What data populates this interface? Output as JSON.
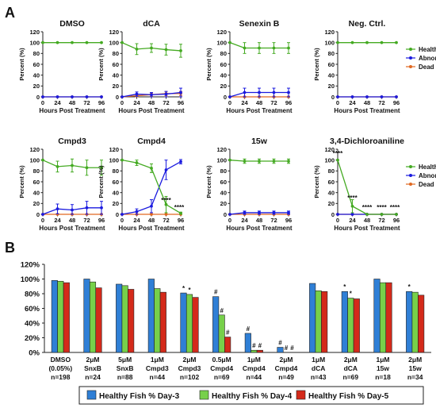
{
  "figure": {
    "panel_a_label": "A",
    "panel_b_label": "B"
  },
  "colors": {
    "healthy": "#44aa22",
    "abnormal": "#1a1adf",
    "dead": "#e06820",
    "bar_day3": "#2f7fd6",
    "bar_day4": "#77d04a",
    "bar_day5": "#d42a1a"
  },
  "chart_data": [
    {
      "type": "line",
      "title": "DMSO",
      "xlabel": "Hours Post Treatment",
      "ylabel": "Percent (%)",
      "x": [
        0,
        24,
        48,
        72,
        96
      ],
      "xticks": [
        "0",
        "24",
        "48",
        "72",
        "96"
      ],
      "yticks": [
        "0",
        "20",
        "40",
        "60",
        "80",
        "100",
        "120"
      ],
      "ylim": [
        0,
        120
      ],
      "series": [
        {
          "name": "Healthy",
          "color": "#44aa22",
          "values": [
            100,
            100,
            100,
            100,
            100
          ],
          "err": [
            0,
            0,
            0,
            0,
            0
          ]
        },
        {
          "name": "Abnormal",
          "color": "#1a1adf",
          "values": [
            0,
            0,
            0,
            0,
            0
          ],
          "err": [
            0,
            0,
            0,
            0,
            0
          ]
        },
        {
          "name": "Dead",
          "color": "#e06820",
          "values": [
            0,
            0,
            0,
            0,
            0
          ],
          "err": [
            0,
            0,
            0,
            0,
            0
          ]
        }
      ],
      "annotations": []
    },
    {
      "type": "line",
      "title": "dCA",
      "xlabel": "Hours Post Treatment",
      "ylabel": "Percent (%)",
      "x": [
        0,
        24,
        48,
        72,
        96
      ],
      "xticks": [
        "0",
        "24",
        "48",
        "72",
        "96"
      ],
      "yticks": [
        "0",
        "20",
        "40",
        "60",
        "80",
        "100",
        "120"
      ],
      "ylim": [
        0,
        120
      ],
      "series": [
        {
          "name": "Healthy",
          "color": "#44aa22",
          "values": [
            100,
            88,
            90,
            87,
            85
          ],
          "err": [
            0,
            10,
            8,
            10,
            12
          ]
        },
        {
          "name": "Abnormal",
          "color": "#1a1adf",
          "values": [
            0,
            5,
            4,
            5,
            8
          ],
          "err": [
            0,
            4,
            4,
            5,
            8
          ]
        },
        {
          "name": "Dead",
          "color": "#e06820",
          "values": [
            0,
            2,
            4,
            6,
            6
          ],
          "err": [
            0,
            2,
            3,
            4,
            4
          ]
        }
      ],
      "annotations": []
    },
    {
      "type": "line",
      "title": "Senexin B",
      "xlabel": "Hours Post Treatment",
      "ylabel": "Percent (%)",
      "x": [
        0,
        24,
        48,
        72,
        96
      ],
      "xticks": [
        "0",
        "24",
        "48",
        "72",
        "96"
      ],
      "yticks": [
        "0",
        "20",
        "40",
        "60",
        "80",
        "100",
        "120"
      ],
      "ylim": [
        0,
        120
      ],
      "series": [
        {
          "name": "Healthy",
          "color": "#44aa22",
          "values": [
            100,
            90,
            90,
            90,
            90
          ],
          "err": [
            0,
            10,
            10,
            10,
            10
          ]
        },
        {
          "name": "Abnormal",
          "color": "#1a1adf",
          "values": [
            0,
            8,
            8,
            8,
            8
          ],
          "err": [
            0,
            8,
            8,
            8,
            8
          ]
        },
        {
          "name": "Dead",
          "color": "#e06820",
          "values": [
            0,
            0,
            0,
            0,
            0
          ],
          "err": [
            0,
            0,
            0,
            0,
            0
          ]
        }
      ],
      "annotations": []
    },
    {
      "type": "line",
      "title": "Neg. Ctrl.",
      "xlabel": "Hours Post Treatment",
      "ylabel": "Percent (%)",
      "x": [
        0,
        24,
        48,
        72,
        96
      ],
      "xticks": [
        "0",
        "24",
        "48",
        "72",
        "96"
      ],
      "yticks": [
        "0",
        "20",
        "40",
        "60",
        "80",
        "100",
        "120"
      ],
      "ylim": [
        0,
        120
      ],
      "series": [
        {
          "name": "Healthy",
          "color": "#44aa22",
          "values": [
            100,
            100,
            100,
            100,
            100
          ],
          "err": [
            0,
            0,
            0,
            0,
            0
          ]
        },
        {
          "name": "Abnormal",
          "color": "#1a1adf",
          "values": [
            0,
            0,
            0,
            0,
            0
          ],
          "err": [
            0,
            0,
            0,
            0,
            0
          ]
        },
        {
          "name": "Dead",
          "color": "#e06820",
          "values": [
            0,
            0,
            0,
            0,
            0
          ],
          "err": [
            0,
            0,
            0,
            0,
            0
          ]
        }
      ],
      "annotations": []
    },
    {
      "type": "line",
      "title": "Cmpd3",
      "xlabel": "Hours Post Treatment",
      "ylabel": "Percent (%)",
      "x": [
        0,
        24,
        48,
        72,
        96
      ],
      "xticks": [
        "0",
        "24",
        "48",
        "72",
        "96"
      ],
      "yticks": [
        "0",
        "20",
        "40",
        "60",
        "80",
        "100",
        "120"
      ],
      "ylim": [
        0,
        120
      ],
      "series": [
        {
          "name": "Healthy",
          "color": "#44aa22",
          "values": [
            100,
            88,
            90,
            86,
            86
          ],
          "err": [
            0,
            10,
            12,
            14,
            14
          ]
        },
        {
          "name": "Abnormal",
          "color": "#1a1adf",
          "values": [
            0,
            10,
            8,
            12,
            12
          ],
          "err": [
            0,
            9,
            10,
            12,
            12
          ]
        },
        {
          "name": "Dead",
          "color": "#e06820",
          "values": [
            0,
            0,
            0,
            0,
            0
          ],
          "err": [
            0,
            0,
            0,
            0,
            0
          ]
        }
      ],
      "annotations": []
    },
    {
      "type": "line",
      "title": "Cmpd4",
      "xlabel": "Hours Post Treatment",
      "ylabel": "Percent (%)",
      "x": [
        0,
        24,
        48,
        72,
        96
      ],
      "xticks": [
        "0",
        "24",
        "48",
        "72",
        "96"
      ],
      "yticks": [
        "0",
        "20",
        "40",
        "60",
        "80",
        "100",
        "120"
      ],
      "ylim": [
        0,
        120
      ],
      "series": [
        {
          "name": "Healthy",
          "color": "#44aa22",
          "values": [
            100,
            95,
            85,
            18,
            2
          ],
          "err": [
            0,
            5,
            8,
            15,
            2
          ]
        },
        {
          "name": "Abnormal",
          "color": "#1a1adf",
          "values": [
            0,
            5,
            15,
            82,
            97
          ],
          "err": [
            0,
            5,
            12,
            18,
            4
          ]
        },
        {
          "name": "Dead",
          "color": "#e06820",
          "values": [
            0,
            0,
            0,
            0,
            0
          ],
          "err": [
            0,
            0,
            0,
            0,
            0
          ]
        }
      ],
      "annotations": [
        {
          "x": 72,
          "y": 22,
          "text": "****"
        },
        {
          "x": 96,
          "y": 9,
          "text": "****"
        }
      ]
    },
    {
      "type": "line",
      "title": "15w",
      "xlabel": "Hours Post Treatment",
      "ylabel": "Percent (%)",
      "x": [
        0,
        24,
        48,
        72,
        96
      ],
      "xticks": [
        "0",
        "24",
        "48",
        "72",
        "96"
      ],
      "yticks": [
        "0",
        "20",
        "40",
        "60",
        "80",
        "100",
        "120"
      ],
      "ylim": [
        0,
        120
      ],
      "series": [
        {
          "name": "Healthy",
          "color": "#44aa22",
          "values": [
            100,
            98,
            98,
            98,
            98
          ],
          "err": [
            0,
            4,
            4,
            4,
            4
          ]
        },
        {
          "name": "Abnormal",
          "color": "#1a1adf",
          "values": [
            0,
            3,
            3,
            3,
            3
          ],
          "err": [
            0,
            3,
            3,
            3,
            3
          ]
        },
        {
          "name": "Dead",
          "color": "#e06820",
          "values": [
            0,
            0,
            0,
            0,
            0
          ],
          "err": [
            0,
            0,
            0,
            0,
            0
          ]
        }
      ],
      "annotations": []
    },
    {
      "type": "line",
      "title": "3,4-Dichloroaniline",
      "xlabel": "Hours Post Treatment",
      "ylabel": "Percent (%)",
      "x": [
        0,
        24,
        48,
        72,
        96
      ],
      "xticks": [
        "0",
        "24",
        "48",
        "72",
        "96"
      ],
      "yticks": [
        "0",
        "20",
        "40",
        "60",
        "80",
        "100",
        "120"
      ],
      "ylim": [
        0,
        120
      ],
      "series": [
        {
          "name": "Healthy",
          "color": "#44aa22",
          "values": [
            100,
            15,
            0,
            0,
            0
          ],
          "err": [
            0,
            12,
            0,
            0,
            0
          ]
        },
        {
          "name": "Abnormal",
          "color": "#1a1adf",
          "values": [
            0,
            0,
            0,
            0,
            0
          ],
          "err": [
            0,
            0,
            0,
            0,
            0
          ]
        },
        {
          "name": "Dead",
          "color": "#e06820",
          "values": [
            0,
            0,
            0,
            0,
            0
          ],
          "err": [
            0,
            0,
            0,
            0,
            0
          ]
        }
      ],
      "annotations": [
        {
          "x": 0,
          "y": 108,
          "text": "****"
        },
        {
          "x": 24,
          "y": 26,
          "text": "****"
        },
        {
          "x": 48,
          "y": 9,
          "text": "****"
        },
        {
          "x": 72,
          "y": 9,
          "text": "****"
        },
        {
          "x": 96,
          "y": 9,
          "text": "****"
        }
      ]
    },
    {
      "type": "bar",
      "title": "",
      "xlabel": "",
      "ylabel": "",
      "ylim": [
        0,
        120
      ],
      "yticks": [
        "0%",
        "20%",
        "40%",
        "60%",
        "80%",
        "100%",
        "120%"
      ],
      "categories": [
        {
          "lines": [
            "DMSO",
            "(0.05%)",
            "n=198"
          ]
        },
        {
          "lines": [
            "2μM",
            "SnxB",
            "n=24"
          ]
        },
        {
          "lines": [
            "5μM",
            "SnxB",
            "n=88"
          ]
        },
        {
          "lines": [
            "1μM",
            "Cmpd3",
            "n=44"
          ]
        },
        {
          "lines": [
            "2μM",
            "Cmpd3",
            "n=102"
          ]
        },
        {
          "lines": [
            "0.5μM",
            "Cmpd4",
            "n=69"
          ]
        },
        {
          "lines": [
            "1μM",
            "Cmpd4",
            "n=44"
          ]
        },
        {
          "lines": [
            "2μM",
            "Cmpd4",
            "n=49"
          ]
        },
        {
          "lines": [
            "1μM",
            "dCA",
            "n=43"
          ]
        },
        {
          "lines": [
            "2μM",
            "dCA",
            "n=69"
          ]
        },
        {
          "lines": [
            "1μM",
            "15w",
            "n=18"
          ]
        },
        {
          "lines": [
            "2μM",
            "15w",
            "n=34"
          ]
        }
      ],
      "series": [
        {
          "name": "Healthy Fish % Day-3",
          "color": "#2f7fd6",
          "values": [
            98,
            100,
            93,
            100,
            81,
            76,
            26,
            7,
            94,
            83,
            100,
            83
          ]
        },
        {
          "name": "Healthy Fish % Day-4",
          "color": "#77d04a",
          "values": [
            97,
            96,
            91,
            87,
            79,
            51,
            3,
            0,
            84,
            74,
            95,
            82
          ]
        },
        {
          "name": "Healthy Fish % Day-5",
          "color": "#d42a1a",
          "values": [
            95,
            88,
            86,
            82,
            75,
            21,
            3,
            0,
            83,
            73,
            95,
            78
          ]
        }
      ],
      "annotations": [
        {
          "category": 4,
          "series": 0,
          "text": "*"
        },
        {
          "category": 4,
          "series": 1,
          "text": "*"
        },
        {
          "category": 5,
          "series": 0,
          "text": "#"
        },
        {
          "category": 5,
          "series": 1,
          "text": "#"
        },
        {
          "category": 5,
          "series": 2,
          "text": "#"
        },
        {
          "category": 6,
          "series": 0,
          "text": "#"
        },
        {
          "category": 6,
          "series": 1,
          "text": "#"
        },
        {
          "category": 6,
          "series": 2,
          "text": "#"
        },
        {
          "category": 7,
          "series": 0,
          "text": "#"
        },
        {
          "category": 7,
          "series": 1,
          "text": "#"
        },
        {
          "category": 7,
          "series": 2,
          "text": "#"
        },
        {
          "category": 9,
          "series": 0,
          "text": "*"
        },
        {
          "category": 9,
          "series": 1,
          "text": "*"
        },
        {
          "category": 11,
          "series": 0,
          "text": "*"
        }
      ]
    }
  ]
}
